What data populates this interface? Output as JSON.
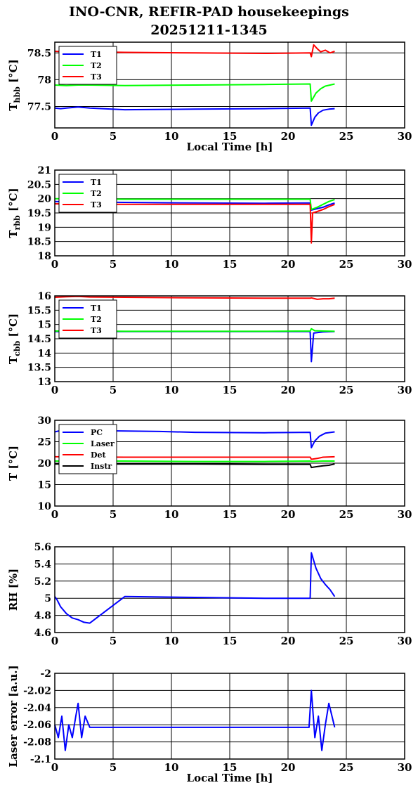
{
  "title": "INO-CNR, REFIR-PAD housekeepings",
  "subtitle": "20251211-1345",
  "chart_data": [
    {
      "type": "line",
      "ylabel": "T_hbb [°C]",
      "ylabel_main": "T",
      "ylabel_sub": "hbb",
      "ylabel_unit": "[°C]",
      "xlabel": "Local Time [h]",
      "xlim": [
        0,
        30
      ],
      "ylim": [
        77.1,
        78.7
      ],
      "xticks": [
        "0",
        "5",
        "10",
        "15",
        "20",
        "25",
        "30"
      ],
      "yticks": [
        "77.5",
        "78",
        "78.5"
      ],
      "ytick_values": [
        77.5,
        78,
        78.5
      ],
      "grid": true,
      "legend_placement": "top-left",
      "series": [
        {
          "name": "T1",
          "color": "#0000ff",
          "x": [
            0,
            0.5,
            1,
            1.5,
            2,
            2.5,
            3,
            6,
            12,
            18,
            21.9,
            22,
            22.3,
            22.6,
            23,
            23.5,
            24
          ],
          "y": [
            77.47,
            77.46,
            77.47,
            77.48,
            77.49,
            77.48,
            77.47,
            77.44,
            77.45,
            77.46,
            77.47,
            77.15,
            77.3,
            77.38,
            77.43,
            77.45,
            77.46
          ]
        },
        {
          "name": "T2",
          "color": "#00ff00",
          "x": [
            0,
            1,
            2,
            3,
            6,
            12,
            18,
            21.9,
            22,
            22.4,
            22.8,
            23.2,
            23.6,
            24
          ],
          "y": [
            77.9,
            77.89,
            77.9,
            77.9,
            77.89,
            77.9,
            77.91,
            77.92,
            77.6,
            77.75,
            77.83,
            77.88,
            77.9,
            77.92
          ]
        },
        {
          "name": "T3",
          "color": "#ff0000",
          "x": [
            0,
            1,
            2,
            3,
            6,
            12,
            18,
            21.9,
            22,
            22.2,
            22.5,
            22.8,
            23.2,
            23.6,
            24
          ],
          "y": [
            78.53,
            78.52,
            78.52,
            78.52,
            78.51,
            78.5,
            78.49,
            78.5,
            78.43,
            78.65,
            78.58,
            78.52,
            78.55,
            78.5,
            78.53
          ]
        }
      ]
    },
    {
      "type": "line",
      "ylabel": "T_rbb [°C]",
      "ylabel_main": "T",
      "ylabel_sub": "rbb",
      "ylabel_unit": "[°C]",
      "xlabel": "",
      "xlim": [
        0,
        30
      ],
      "ylim": [
        18,
        21
      ],
      "xticks": [
        "0",
        "5",
        "10",
        "15",
        "20",
        "25",
        "30"
      ],
      "yticks": [
        "18",
        "18.5",
        "19",
        "19.5",
        "20",
        "20.5",
        "21"
      ],
      "ytick_values": [
        18,
        18.5,
        19,
        19.5,
        20,
        20.5,
        21
      ],
      "grid": true,
      "legend_placement": "top-left",
      "series": [
        {
          "name": "T1",
          "color": "#0000ff",
          "x": [
            0,
            3,
            6,
            12,
            18,
            21.9,
            22,
            22.5,
            23,
            23.5,
            24
          ],
          "y": [
            19.9,
            19.88,
            19.87,
            19.85,
            19.84,
            19.85,
            19.6,
            19.65,
            19.7,
            19.78,
            19.85
          ]
        },
        {
          "name": "T2",
          "color": "#00ff00",
          "x": [
            0,
            3,
            6,
            12,
            18,
            21.9,
            22,
            22.5,
            23,
            23.5,
            24
          ],
          "y": [
            20.0,
            19.99,
            19.98,
            19.98,
            19.98,
            19.98,
            19.62,
            19.7,
            19.8,
            19.9,
            19.97
          ]
        },
        {
          "name": "T3",
          "color": "#ff0000",
          "x": [
            0,
            3,
            6,
            12,
            18,
            21.9,
            22,
            22.1,
            22.5,
            23,
            23.5,
            24
          ],
          "y": [
            19.82,
            19.8,
            19.8,
            19.8,
            19.8,
            19.8,
            18.45,
            19.5,
            19.55,
            19.62,
            19.72,
            19.8
          ]
        }
      ]
    },
    {
      "type": "line",
      "ylabel": "T_cbb [°C]",
      "ylabel_main": "T",
      "ylabel_sub": "cbb",
      "ylabel_unit": "[°C]",
      "xlabel": "",
      "xlim": [
        0,
        30
      ],
      "ylim": [
        13,
        16
      ],
      "xticks": [
        "0",
        "5",
        "10",
        "15",
        "20",
        "25",
        "30"
      ],
      "yticks": [
        "13",
        "13.5",
        "14",
        "14.5",
        "15",
        "15.5",
        "16"
      ],
      "ytick_values": [
        13,
        13.5,
        14,
        14.5,
        15,
        15.5,
        16
      ],
      "grid": true,
      "legend_placement": "top-left",
      "series": [
        {
          "name": "T1",
          "color": "#0000ff",
          "x": [
            0,
            3,
            6,
            12,
            18,
            21.9,
            22,
            22.2,
            23,
            24
          ],
          "y": [
            14.75,
            14.75,
            14.75,
            14.75,
            14.75,
            14.75,
            13.7,
            14.7,
            14.74,
            14.75
          ]
        },
        {
          "name": "T2",
          "color": "#00ff00",
          "x": [
            0,
            3,
            6,
            12,
            18,
            21.9,
            22,
            22.3,
            23,
            24
          ],
          "y": [
            14.77,
            14.77,
            14.76,
            14.76,
            14.76,
            14.77,
            14.85,
            14.78,
            14.77,
            14.76
          ]
        },
        {
          "name": "T3",
          "color": "#ff0000",
          "x": [
            0,
            1,
            2,
            3,
            6,
            12,
            18,
            21.9,
            22,
            22.5,
            23,
            23.5,
            24
          ],
          "y": [
            15.95,
            15.97,
            15.98,
            15.96,
            15.95,
            15.93,
            15.92,
            15.92,
            15.93,
            15.88,
            15.9,
            15.9,
            15.92
          ]
        }
      ]
    },
    {
      "type": "line",
      "ylabel": "T [°C]",
      "xlabel": "",
      "xlim": [
        0,
        30
      ],
      "ylim": [
        10,
        30
      ],
      "xticks": [
        "0",
        "5",
        "10",
        "15",
        "20",
        "25",
        "30"
      ],
      "yticks": [
        "10",
        "15",
        "20",
        "25",
        "30"
      ],
      "ytick_values": [
        10,
        15,
        20,
        25,
        30
      ],
      "grid": true,
      "legend_placement": "top-left",
      "series": [
        {
          "name": "PC",
          "color": "#0000ff",
          "x": [
            0,
            0.5,
            3,
            6,
            9,
            12,
            18,
            21.9,
            22,
            22.3,
            22.7,
            23.2,
            24
          ],
          "y": [
            27.3,
            27.6,
            27.6,
            27.5,
            27.4,
            27.2,
            27.1,
            27.2,
            23.6,
            25.2,
            26.3,
            27.0,
            27.3
          ]
        },
        {
          "name": "Laser",
          "color": "#00ff00",
          "x": [
            0,
            6,
            12,
            18,
            21.9,
            22,
            23,
            24
          ],
          "y": [
            20.5,
            20.5,
            20.4,
            20.4,
            20.5,
            20.4,
            20.5,
            20.5
          ]
        },
        {
          "name": "Det",
          "color": "#ff0000",
          "x": [
            0,
            6,
            12,
            18,
            21.9,
            22,
            22.5,
            23,
            24
          ],
          "y": [
            21.5,
            21.4,
            21.4,
            21.4,
            21.4,
            20.9,
            21.1,
            21.4,
            21.5
          ]
        },
        {
          "name": "Instr",
          "color": "#000000",
          "x": [
            0,
            6,
            12,
            18,
            21.9,
            22,
            22.5,
            23,
            23.5,
            24
          ],
          "y": [
            19.8,
            19.8,
            19.8,
            19.7,
            19.7,
            19.0,
            19.2,
            19.4,
            19.5,
            19.8
          ]
        }
      ]
    },
    {
      "type": "line",
      "ylabel": "RH [%]",
      "xlabel": "",
      "xlim": [
        0,
        30
      ],
      "ylim": [
        4.6,
        5.6
      ],
      "xticks": [
        "0",
        "5",
        "10",
        "15",
        "20",
        "25",
        "30"
      ],
      "yticks": [
        "4.6",
        "4.8",
        "5",
        "5.2",
        "5.4",
        "5.6"
      ],
      "ytick_values": [
        4.6,
        4.8,
        5,
        5.2,
        5.4,
        5.6
      ],
      "grid": true,
      "legend_placement": "none",
      "series": [
        {
          "color": "#0000ff",
          "x": [
            0,
            0.2,
            0.5,
            1,
            1.5,
            2,
            2.5,
            3,
            6,
            12,
            18,
            21.9,
            22,
            22.4,
            22.8,
            23.2,
            23.6,
            24
          ],
          "y": [
            5.02,
            4.98,
            4.9,
            4.82,
            4.77,
            4.75,
            4.72,
            4.71,
            5.02,
            5.01,
            5.0,
            5.0,
            5.53,
            5.35,
            5.23,
            5.16,
            5.1,
            5.02
          ]
        }
      ]
    },
    {
      "type": "line",
      "ylabel": "Laser error [a.u.]",
      "xlabel": "Local Time [h]",
      "xlim": [
        0,
        30
      ],
      "ylim": [
        -2.1,
        -2
      ],
      "xticks": [
        "0",
        "5",
        "10",
        "15",
        "20",
        "25",
        "30"
      ],
      "yticks": [
        "-2.1",
        "-2.08",
        "-2.06",
        "-2.04",
        "-2.02",
        "-2"
      ],
      "ytick_values": [
        -2.1,
        -2.08,
        -2.06,
        -2.04,
        -2.02,
        -2
      ],
      "grid": true,
      "legend_placement": "none",
      "series": [
        {
          "color": "#0000ff",
          "x": [
            0,
            0.3,
            0.6,
            0.9,
            1.2,
            1.5,
            1.8,
            2.0,
            2.3,
            2.6,
            3,
            6,
            12,
            18,
            21.8,
            22,
            22.3,
            22.6,
            22.9,
            23.2,
            23.5,
            24
          ],
          "y": [
            -2.06,
            -2.075,
            -2.05,
            -2.09,
            -2.06,
            -2.075,
            -2.05,
            -2.035,
            -2.075,
            -2.05,
            -2.063,
            -2.063,
            -2.063,
            -2.063,
            -2.063,
            -2.02,
            -2.075,
            -2.05,
            -2.09,
            -2.06,
            -2.035,
            -2.063
          ]
        }
      ]
    }
  ]
}
